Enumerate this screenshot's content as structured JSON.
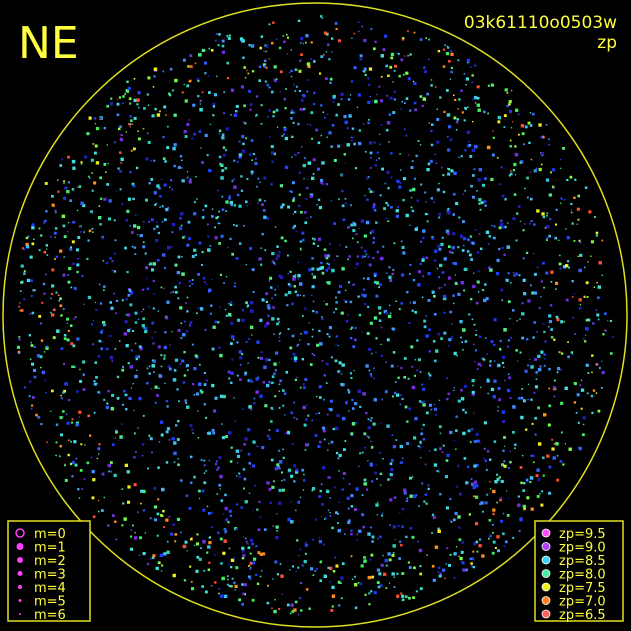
{
  "header": {
    "direction": "NE",
    "image_id": "03k61110o0503w",
    "mode": "zp"
  },
  "legend_magnitude": {
    "items": [
      "m=0",
      "m=1",
      "m=2",
      "m=3",
      "m=4",
      "m=5",
      "m=6"
    ]
  },
  "legend_zp": {
    "items": [
      {
        "label": "zp=9.5",
        "color": "#ff50ff"
      },
      {
        "label": "zp=9.0",
        "color": "#b040ff"
      },
      {
        "label": "zp=8.5",
        "color": "#40d0ff"
      },
      {
        "label": "zp=8.0",
        "color": "#40f0a0"
      },
      {
        "label": "zp=7.5",
        "color": "#f0f020"
      },
      {
        "label": "zp=7.0",
        "color": "#ff8020"
      },
      {
        "label": "zp=6.5",
        "color": "#ff6060"
      }
    ]
  }
}
